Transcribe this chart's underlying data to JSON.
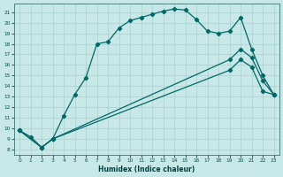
{
  "xlabel": "Humidex (Indice chaleur)",
  "bg_color": "#c8e8e8",
  "grid_color": "#a8d0d0",
  "line_color": "#006868",
  "xlim": [
    -0.5,
    23.5
  ],
  "ylim": [
    7.5,
    21.8
  ],
  "yticks": [
    8,
    9,
    10,
    11,
    12,
    13,
    14,
    15,
    16,
    17,
    18,
    19,
    20,
    21
  ],
  "xticks": [
    0,
    1,
    2,
    3,
    4,
    5,
    6,
    7,
    8,
    9,
    10,
    11,
    12,
    13,
    14,
    15,
    16,
    17,
    18,
    19,
    20,
    21,
    22,
    23
  ],
  "line1_x": [
    0,
    1,
    2,
    3,
    4,
    5,
    6,
    7,
    8,
    9,
    10,
    11,
    12,
    13,
    14,
    15,
    16,
    17,
    18,
    19,
    20,
    21,
    22,
    23
  ],
  "line1_y": [
    9.8,
    9.2,
    8.2,
    9.0,
    11.2,
    13.2,
    14.8,
    18.0,
    18.2,
    19.5,
    20.2,
    20.5,
    20.8,
    21.1,
    21.3,
    21.2,
    20.3,
    19.2,
    19.0,
    19.2,
    20.5,
    17.5,
    15.0,
    13.2
  ],
  "line2_x": [
    0,
    2,
    3,
    19,
    20,
    21,
    22,
    23
  ],
  "line2_y": [
    9.8,
    8.2,
    9.0,
    16.5,
    17.5,
    16.7,
    14.5,
    13.2
  ],
  "line3_x": [
    0,
    2,
    3,
    19,
    20,
    21,
    22,
    23
  ],
  "line3_y": [
    9.8,
    8.2,
    9.0,
    15.5,
    16.5,
    15.8,
    13.5,
    13.2
  ]
}
